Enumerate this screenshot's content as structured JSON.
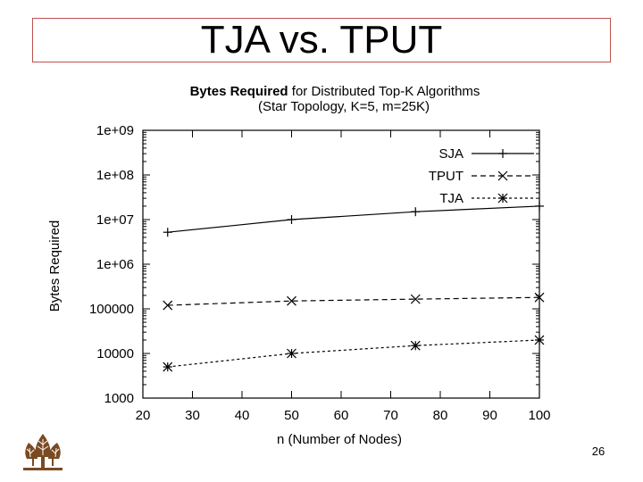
{
  "slide": {
    "title": "TJA vs. TPUT",
    "page_number": "26",
    "logo": "university-tree-logo"
  },
  "colors": {
    "title_border": "#c0504d",
    "ink": "#000000",
    "logo": "#7a4a21"
  },
  "chart_data": {
    "type": "line",
    "title_bold": "Bytes Required",
    "title_rest": " for Distributed Top-K Algorithms",
    "subtitle": "(Star Topology, K=5, m=25K)",
    "xlabel": "n (Number of Nodes)",
    "ylabel": "Bytes Required",
    "xlim": [
      20,
      100
    ],
    "ylim": [
      1000,
      1000000000
    ],
    "yscale": "log",
    "xticks": [
      "20",
      "30",
      "40",
      "50",
      "60",
      "70",
      "80",
      "90",
      "100"
    ],
    "yticks": [
      "1000",
      "10000",
      "100000",
      "1e+06",
      "1e+07",
      "1e+08",
      "1e+09"
    ],
    "grid": false,
    "legend_position": "top-right",
    "series": [
      {
        "name": "SJA",
        "marker": "plus",
        "dash": "solid",
        "x": [
          25,
          50,
          75,
          100
        ],
        "y": [
          5200000,
          10000000,
          15000000,
          20000000
        ]
      },
      {
        "name": "TPUT",
        "marker": "x",
        "dash": "dashed",
        "x": [
          25,
          50,
          75,
          100
        ],
        "y": [
          120000,
          150000,
          165000,
          180000
        ]
      },
      {
        "name": "TJA",
        "marker": "star",
        "dash": "dotted",
        "x": [
          25,
          50,
          75,
          100
        ],
        "y": [
          5000,
          10000,
          15000,
          20000
        ]
      }
    ]
  }
}
